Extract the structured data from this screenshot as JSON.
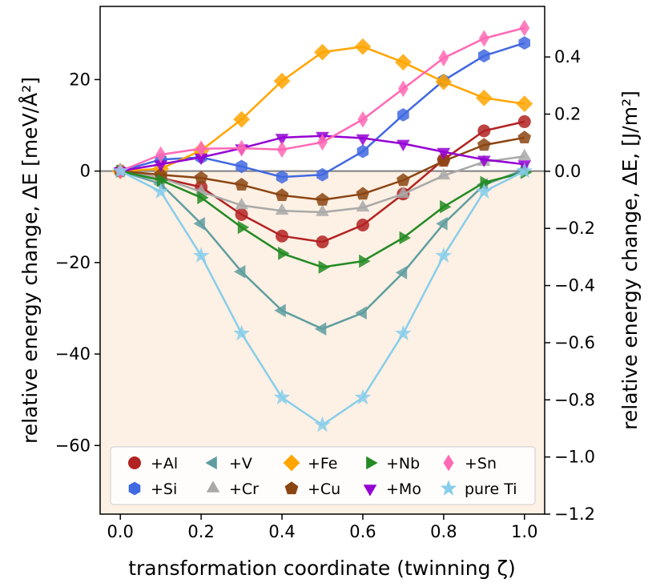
{
  "chart_data": {
    "type": "line",
    "xlabel": "transformation coordinate (twinning ζ)",
    "ylabel_left": "relative energy change, ΔE [meV/Å²]",
    "ylabel_right": "relative energy change, ΔE, [J/m²]",
    "xlim": [
      -0.05,
      1.05
    ],
    "ylim": [
      -75,
      36
    ],
    "ylim_right": [
      -1.2,
      0.577
    ],
    "x_ticks": [
      0.0,
      0.2,
      0.4,
      0.6,
      0.8,
      1.0
    ],
    "x_tick_labels": [
      "0.0",
      "0.2",
      "0.4",
      "0.6",
      "0.8",
      "1.0"
    ],
    "y_ticks": [
      20,
      0,
      -20,
      -40,
      -60
    ],
    "y_tick_labels": [
      "20",
      "0",
      "−20",
      "−40",
      "−60"
    ],
    "y_right_ticks": [
      0.4,
      0.2,
      0.0,
      -0.2,
      -0.4,
      -0.6,
      -0.8,
      -1.0,
      -1.2
    ],
    "y_right_tick_labels": [
      "0.4",
      "0.2",
      "0.0",
      "−0.2",
      "−0.4",
      "−0.6",
      "−0.8",
      "−1.0",
      "−1.2"
    ],
    "x": [
      0.0,
      0.1,
      0.2,
      0.3,
      0.4,
      0.5,
      0.6,
      0.7,
      0.8,
      0.9,
      1.0
    ],
    "series": [
      {
        "name": "+Al",
        "label": "+Al",
        "color": "#b22222",
        "marker": "circle",
        "values": [
          0,
          -1.5,
          -3.5,
          -9.5,
          -14.2,
          -15.5,
          -11.8,
          -5,
          2.5,
          8.8,
          10.8
        ]
      },
      {
        "name": "+Si",
        "label": "+Si",
        "color": "#4169e1",
        "marker": "hexagon",
        "values": [
          0,
          2.5,
          3,
          1,
          -1.3,
          -0.8,
          4.3,
          12.3,
          19.8,
          25.2,
          28
        ]
      },
      {
        "name": "+V",
        "label": "+V",
        "color": "#5f9ea0",
        "marker": "triangle-left",
        "values": [
          0,
          -2.8,
          -11.5,
          -22,
          -30.5,
          -34.5,
          -31,
          -22.2,
          -11.5,
          -3,
          0.3
        ]
      },
      {
        "name": "+Cr",
        "label": "+Cr",
        "color": "#a9a9a9",
        "marker": "triangle-up",
        "values": [
          0,
          -1.5,
          -4.5,
          -7.5,
          -8.7,
          -9,
          -8,
          -5,
          -1,
          2,
          3.2
        ]
      },
      {
        "name": "+Fe",
        "label": "+Fe",
        "color": "#ffa500",
        "marker": "diamond",
        "values": [
          0,
          0.5,
          4.5,
          11.3,
          19.7,
          26,
          27.2,
          23.8,
          19.5,
          16,
          14.7
        ]
      },
      {
        "name": "+Cu",
        "label": "+Cu",
        "color": "#8b4513",
        "marker": "pentagon",
        "values": [
          0,
          -0.8,
          -1.5,
          -3,
          -5.3,
          -6.3,
          -5,
          -2,
          2.2,
          5.7,
          7.3
        ]
      },
      {
        "name": "+Nb",
        "label": "+Nb",
        "color": "#228b22",
        "marker": "triangle-right",
        "values": [
          0,
          -2,
          -5.8,
          -12.3,
          -18,
          -21,
          -19.7,
          -14.6,
          -7.8,
          -2.5,
          -0.3
        ]
      },
      {
        "name": "+Mo",
        "label": "+Mo",
        "color": "#9400d3",
        "marker": "triangle-down",
        "values": [
          0,
          1.5,
          3,
          5,
          7.3,
          7.7,
          7.2,
          6,
          4.2,
          2.5,
          1.5
        ]
      },
      {
        "name": "+Sn",
        "label": "+Sn",
        "color": "#ff69b4",
        "marker": "thin-diamond",
        "values": [
          0,
          3.6,
          4.9,
          5,
          4.7,
          6.3,
          11.3,
          18,
          24.7,
          29,
          31.3
        ]
      },
      {
        "name": "pure Ti",
        "label": "pure Ti",
        "color": "#87ceeb",
        "marker": "star",
        "values": [
          0,
          -4.5,
          -18.5,
          -35.5,
          -49.5,
          -55.5,
          -49.5,
          -35.5,
          -18.5,
          -4.5,
          0
        ]
      }
    ],
    "legend_position": "lower center",
    "legend_order": [
      "+Al",
      "+Si",
      "+V",
      "+Cr",
      "+Fe",
      "+Cu",
      "+Nb",
      "+Mo",
      "+Sn",
      "pure Ti"
    ],
    "negative_region_fill": "#fdf0e4",
    "zero_line_color": "#808080"
  }
}
